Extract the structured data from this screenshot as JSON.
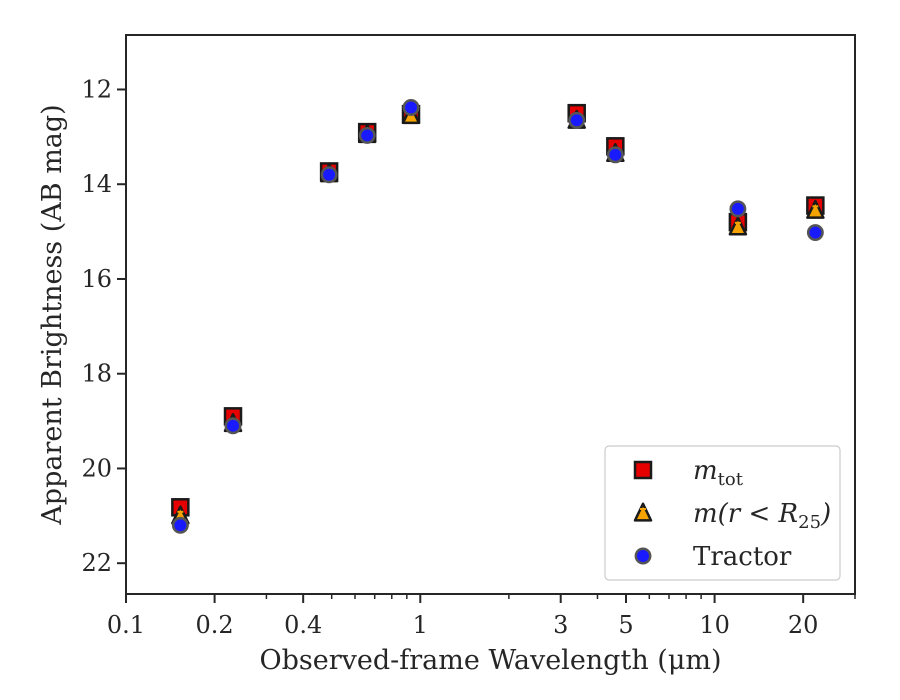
{
  "chart_data": {
    "type": "scatter",
    "xlabel": "Observed-frame Wavelength (μm)",
    "ylabel": "Apparent Brightness (AB mag)",
    "x_scale": "log",
    "xlim": [
      0.1,
      30
    ],
    "ylim": [
      22.65,
      10.85
    ],
    "y_inverted": true,
    "x_ticks": [
      {
        "value": 0.1,
        "label": "0.1"
      },
      {
        "value": 0.2,
        "label": "0.2"
      },
      {
        "value": 0.4,
        "label": "0.4"
      },
      {
        "value": 1,
        "label": "1"
      },
      {
        "value": 3,
        "label": "3"
      },
      {
        "value": 5,
        "label": "5"
      },
      {
        "value": 10,
        "label": "10"
      },
      {
        "value": 20,
        "label": "20"
      }
    ],
    "y_ticks": [
      {
        "value": 12,
        "label": "12"
      },
      {
        "value": 14,
        "label": "14"
      },
      {
        "value": 16,
        "label": "16"
      },
      {
        "value": 18,
        "label": "18"
      },
      {
        "value": 20,
        "label": "20"
      },
      {
        "value": 22,
        "label": "22"
      }
    ],
    "grid": false,
    "legend_position": "lower-right",
    "series": [
      {
        "name": "m_tot",
        "legend": {
          "base": "m",
          "sub": "tot"
        },
        "marker": "square",
        "fill": "#e60000",
        "errcolor": "#e60000",
        "x": [
          0.153,
          0.231,
          0.49,
          0.66,
          0.93,
          3.4,
          4.6,
          12.0,
          22.0
        ],
        "y": [
          20.82,
          18.9,
          13.73,
          12.9,
          12.52,
          12.5,
          13.2,
          14.8,
          14.45
        ]
      },
      {
        "name": "m(r<R_25)",
        "legend": {
          "base": "m(r < R",
          "sub": "25",
          "tail": ")"
        },
        "marker": "triangle",
        "fill": "#f5a300",
        "errcolor": "#f5a300",
        "x": [
          0.153,
          0.231,
          0.49,
          0.66,
          0.93,
          3.4,
          4.6,
          12.0,
          22.0
        ],
        "y": [
          21.0,
          19.05,
          13.78,
          12.95,
          12.55,
          12.65,
          13.35,
          14.9,
          14.55
        ]
      },
      {
        "name": "Tractor",
        "legend": {
          "base": "Tractor"
        },
        "marker": "circle",
        "fill": "#1a1aff",
        "errcolor": "#1a1aff",
        "x": [
          0.153,
          0.231,
          0.49,
          0.66,
          0.93,
          3.4,
          4.6,
          12.0,
          22.0
        ],
        "y": [
          21.2,
          19.1,
          13.8,
          12.97,
          12.38,
          12.65,
          13.38,
          14.52,
          15.02
        ]
      }
    ]
  }
}
